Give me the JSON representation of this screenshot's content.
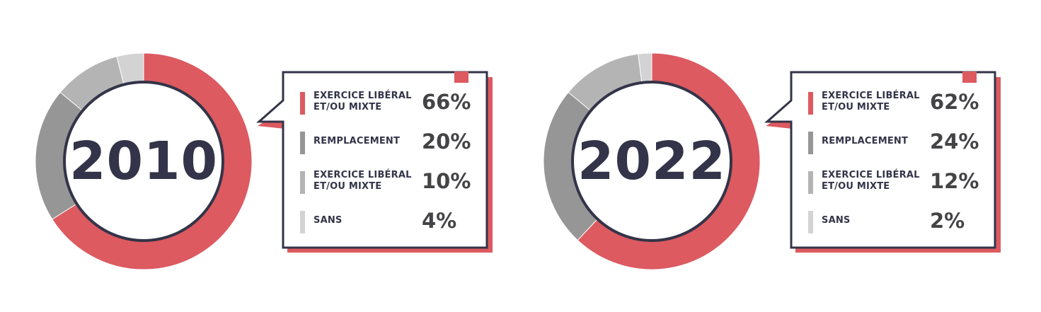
{
  "chart_data": [
    {
      "type": "pie",
      "title": "2010",
      "categories": [
        "EXERCICE LIBÉRAL ET/OU MIXTE",
        "REMPLACEMENT",
        "EXERCICE LIBÉRAL ET/OU MIXTE",
        "SANS"
      ],
      "values": [
        66,
        20,
        10,
        4
      ],
      "value_labels": [
        "66%",
        "20%",
        "10%",
        "4%"
      ],
      "colors": [
        "#dc5a60",
        "#969696",
        "#b4b4b4",
        "#d3d3d3"
      ]
    },
    {
      "type": "pie",
      "title": "2022",
      "categories": [
        "EXERCICE LIBÉRAL ET/OU MIXTE",
        "REMPLACEMENT",
        "EXERCICE LIBÉRAL ET/OU MIXTE",
        "SANS"
      ],
      "values": [
        62,
        24,
        12,
        2
      ],
      "value_labels": [
        "62%",
        "24%",
        "12%",
        "2%"
      ],
      "colors": [
        "#dc5a60",
        "#969696",
        "#b4b4b4",
        "#d3d3d3"
      ]
    }
  ],
  "theme": {
    "navy": "#333449",
    "accent": "#dc5a60"
  }
}
